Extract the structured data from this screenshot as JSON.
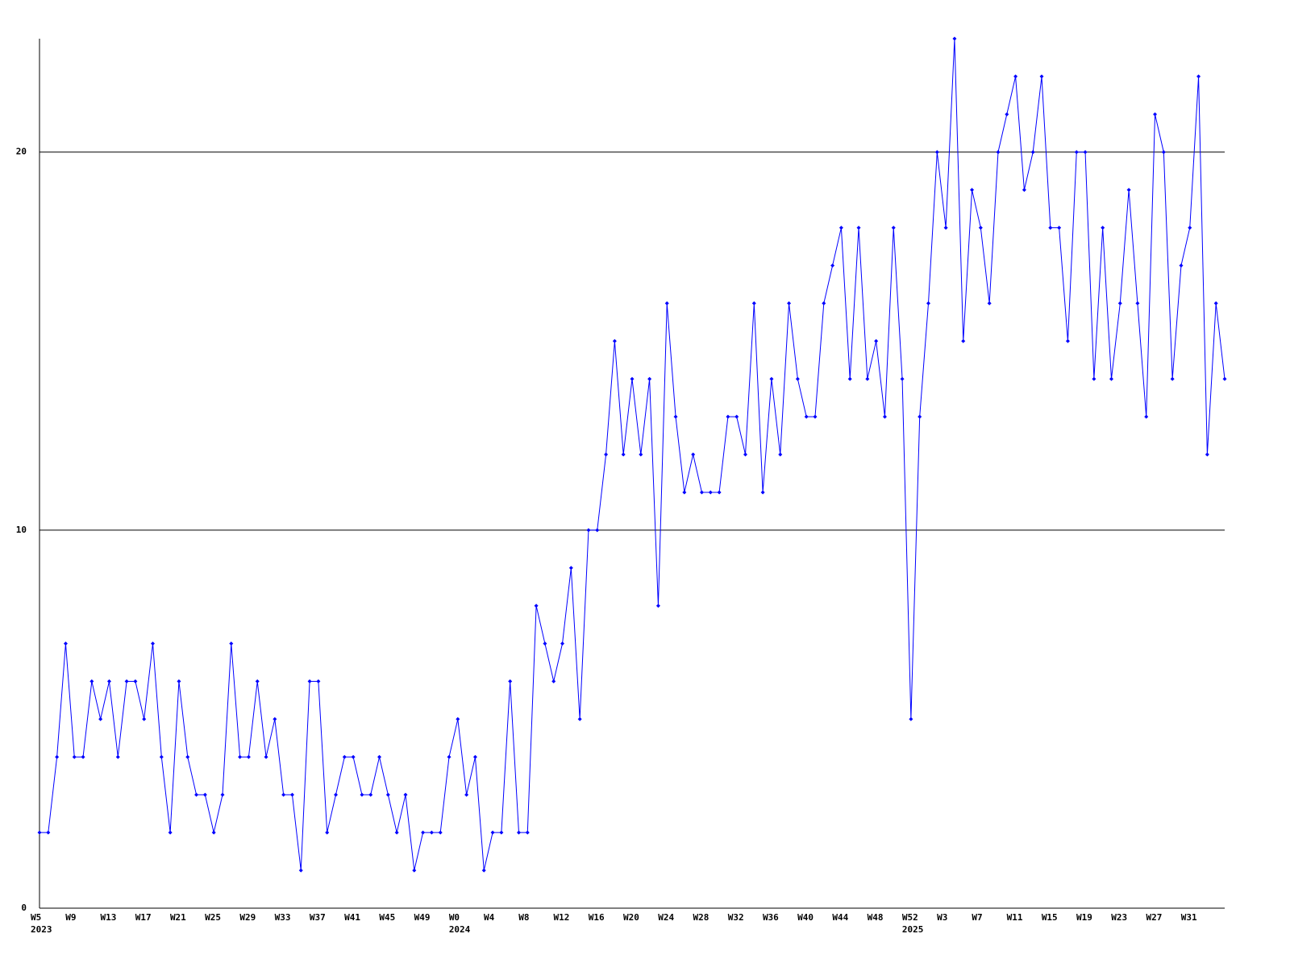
{
  "chart_data": {
    "type": "line",
    "categories": [
      "W5",
      null,
      null,
      null,
      "W9",
      null,
      null,
      null,
      "W13",
      null,
      null,
      null,
      "W17",
      null,
      null,
      null,
      "W21",
      null,
      null,
      null,
      "W25",
      null,
      null,
      null,
      "W29",
      null,
      null,
      null,
      "W33",
      null,
      null,
      null,
      "W37",
      null,
      null,
      null,
      "W41",
      null,
      null,
      null,
      "W45",
      null,
      null,
      null,
      "W49",
      null,
      null,
      null,
      "W0",
      null,
      null,
      null,
      "W4",
      null,
      null,
      null,
      "W8",
      null,
      null,
      null,
      "W12",
      null,
      null,
      null,
      "W16",
      null,
      null,
      null,
      "W20",
      null,
      null,
      null,
      "W24",
      null,
      null,
      null,
      "W28",
      null,
      null,
      null,
      "W32",
      null,
      null,
      null,
      "W36",
      null,
      null,
      null,
      "W40",
      null,
      null,
      null,
      "W44",
      null,
      null,
      null,
      "W48",
      null,
      null,
      null,
      "W52",
      null,
      null,
      null,
      "W3",
      null,
      null,
      null,
      "W7",
      null,
      null,
      null,
      "W11",
      null,
      null,
      null,
      "W15",
      null,
      null,
      null,
      "W19",
      null,
      null,
      null,
      "W23",
      null,
      null,
      null,
      "W27",
      null,
      null,
      null,
      "W31",
      null,
      null,
      null,
      null
    ],
    "years": [
      "2023",
      null,
      null,
      null,
      null,
      null,
      null,
      null,
      null,
      null,
      null,
      null,
      null,
      null,
      null,
      null,
      null,
      null,
      null,
      null,
      null,
      null,
      null,
      null,
      null,
      null,
      null,
      null,
      null,
      null,
      null,
      null,
      null,
      null,
      null,
      null,
      null,
      null,
      null,
      null,
      null,
      null,
      null,
      null,
      null,
      null,
      null,
      null,
      "2024",
      null,
      null,
      null,
      null,
      null,
      null,
      null,
      null,
      null,
      null,
      null,
      null,
      null,
      null,
      null,
      null,
      null,
      null,
      null,
      null,
      null,
      null,
      null,
      null,
      null,
      null,
      null,
      null,
      null,
      null,
      null,
      null,
      null,
      null,
      null,
      null,
      null,
      null,
      null,
      null,
      null,
      null,
      null,
      null,
      null,
      null,
      null,
      null,
      null,
      null,
      null,
      "2025",
      null,
      null,
      null,
      null,
      null,
      null,
      null,
      null,
      null,
      null,
      null,
      null,
      null,
      null,
      null,
      null,
      null,
      null,
      null,
      null,
      null,
      null,
      null,
      null,
      null,
      null,
      null,
      null,
      null,
      null,
      null,
      null,
      null,
      null,
      null,
      null
    ],
    "values": [
      2,
      2,
      4,
      7,
      4,
      4,
      6,
      5,
      6,
      4,
      6,
      6,
      5,
      7,
      4,
      2,
      6,
      4,
      3,
      3,
      2,
      3,
      7,
      4,
      4,
      6,
      4,
      5,
      3,
      3,
      1,
      6,
      6,
      2,
      3,
      4,
      4,
      3,
      3,
      4,
      3,
      2,
      3,
      1,
      2,
      2,
      2,
      4,
      5,
      3,
      4,
      1,
      2,
      2,
      6,
      2,
      2,
      8,
      7,
      6,
      7,
      9,
      5,
      10,
      10,
      12,
      15,
      12,
      14,
      12,
      14,
      8,
      16,
      13,
      11,
      12,
      11,
      11,
      11,
      13,
      13,
      12,
      16,
      11,
      14,
      12,
      16,
      14,
      13,
      13,
      16,
      17,
      18,
      14,
      18,
      14,
      15,
      13,
      18,
      14,
      5,
      13,
      16,
      20,
      18,
      23,
      15,
      19,
      18,
      16,
      20,
      21,
      22,
      19,
      20,
      22,
      18,
      18,
      15,
      20,
      20,
      14,
      18,
      14,
      16,
      19,
      16,
      13,
      21,
      20,
      14,
      17,
      18,
      22,
      12,
      16,
      14
    ],
    "color": "#0000ff",
    "ylim": [
      0,
      23
    ],
    "yticks": [
      0,
      10,
      20
    ],
    "grid": true
  }
}
